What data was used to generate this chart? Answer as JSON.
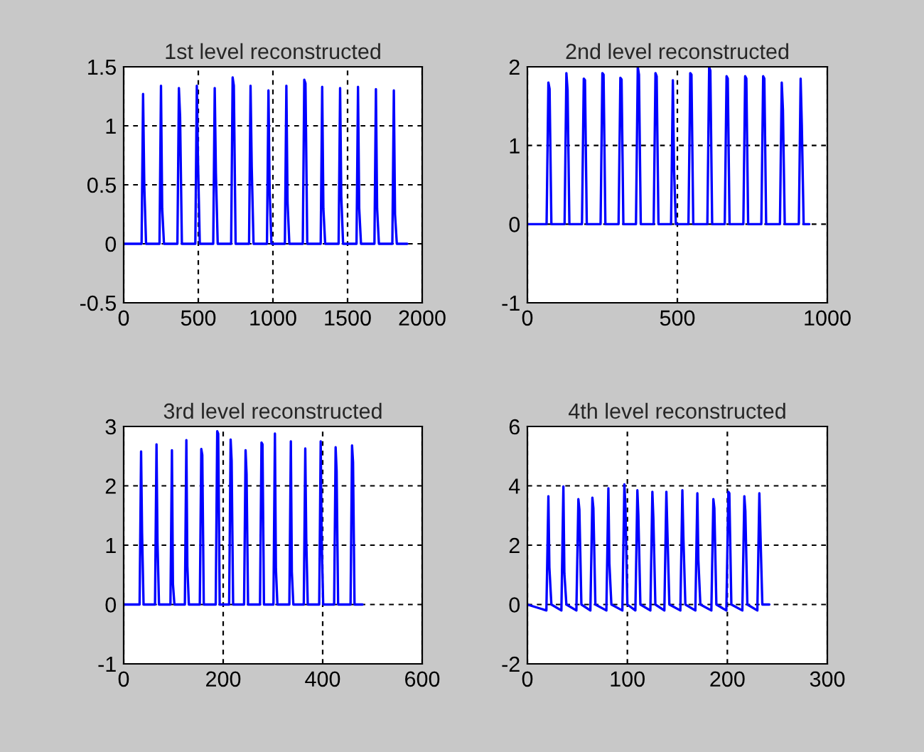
{
  "chart_data": [
    {
      "type": "line",
      "title": "1st level reconstructed",
      "xlim": [
        0,
        2000
      ],
      "ylim": [
        -0.5,
        1.5
      ],
      "xticks": [
        0,
        500,
        1000,
        1500,
        2000
      ],
      "yticks": [
        -0.5,
        0,
        0.5,
        1,
        1.5
      ],
      "grid": true,
      "line_style": "solid",
      "series": [
        {
          "color": "#0000ff",
          "x": [
            0,
            120,
            130,
            138,
            150,
            240,
            250,
            258,
            270,
            360,
            370,
            378,
            390,
            480,
            490,
            498,
            510,
            600,
            610,
            618,
            630,
            720,
            730,
            738,
            750,
            840,
            850,
            858,
            870,
            960,
            970,
            978,
            990,
            1080,
            1090,
            1098,
            1110,
            1200,
            1210,
            1218,
            1230,
            1320,
            1330,
            1338,
            1350,
            1440,
            1450,
            1458,
            1470,
            1560,
            1570,
            1578,
            1590,
            1680,
            1690,
            1698,
            1710,
            1800,
            1810,
            1818,
            1830,
            1900
          ],
          "values": [
            0,
            0,
            1.27,
            0.5,
            0,
            0,
            1.34,
            0.3,
            0,
            0,
            1.32,
            1.08,
            0,
            0,
            1.34,
            0.7,
            0,
            0,
            1.32,
            0.6,
            0,
            0,
            1.41,
            1.34,
            0,
            0,
            1.34,
            0.65,
            0,
            0,
            1.3,
            0.45,
            0,
            0,
            1.34,
            0.35,
            0,
            0,
            1.39,
            1.36,
            0,
            0,
            1.33,
            0.3,
            0,
            0,
            1.32,
            0.4,
            0,
            0,
            1.33,
            0.3,
            0,
            0,
            1.31,
            0.3,
            0,
            0,
            1.3,
            0.25,
            0,
            0
          ]
        }
      ]
    },
    {
      "type": "line",
      "title": "2nd level reconstructed",
      "xlim": [
        0,
        1000
      ],
      "ylim": [
        -1,
        2
      ],
      "xticks": [
        0,
        500,
        1000
      ],
      "yticks": [
        -1,
        0,
        1,
        2
      ],
      "grid": true,
      "line_style": "solid",
      "series": [
        {
          "color": "#0000ff",
          "x": [
            0,
            64,
            70,
            74,
            80,
            124,
            130,
            134,
            140,
            182,
            188,
            192,
            198,
            244,
            250,
            254,
            260,
            304,
            310,
            314,
            320,
            362,
            368,
            372,
            378,
            421,
            427,
            431,
            437,
            479,
            485,
            489,
            495,
            537,
            543,
            547,
            553,
            600,
            606,
            610,
            616,
            658,
            664,
            668,
            674,
            720,
            726,
            730,
            736,
            780,
            786,
            790,
            796,
            842,
            848,
            852,
            858,
            905,
            911,
            915,
            921,
            940
          ],
          "values": [
            0,
            0,
            1.8,
            1.72,
            0,
            0,
            1.92,
            1.7,
            0,
            0,
            1.85,
            1.83,
            0,
            0,
            1.92,
            1.9,
            0,
            0,
            1.86,
            1.84,
            0,
            0,
            2.0,
            1.9,
            0,
            0,
            1.92,
            1.88,
            0,
            0,
            1.83,
            0.7,
            0,
            0,
            1.92,
            1.9,
            0,
            0,
            2.0,
            1.95,
            0,
            0,
            1.88,
            1.85,
            0,
            0,
            1.88,
            1.85,
            0,
            0,
            1.88,
            1.85,
            0,
            0,
            1.8,
            1.45,
            0,
            0,
            1.85,
            1.25,
            0,
            0
          ]
        }
      ]
    },
    {
      "type": "line",
      "title": "3rd level reconstructed",
      "xlim": [
        0,
        600
      ],
      "ylim": [
        -1,
        3
      ],
      "xticks": [
        0,
        200,
        400,
        600
      ],
      "yticks": [
        -1,
        0,
        1,
        2,
        3
      ],
      "grid": true,
      "line_style": "solid",
      "series": [
        {
          "color": "#0000ff",
          "x": [
            0,
            32,
            35,
            37,
            40,
            63,
            66,
            68,
            71,
            94,
            97,
            99,
            102,
            123,
            126,
            128,
            131,
            153,
            156,
            158,
            161,
            185,
            188,
            190,
            193,
            212,
            215,
            217,
            220,
            242,
            245,
            247,
            250,
            274,
            277,
            279,
            282,
            301,
            304,
            306,
            309,
            333,
            336,
            338,
            341,
            362,
            365,
            367,
            370,
            393,
            396,
            398,
            401,
            423,
            426,
            428,
            431,
            456,
            459,
            461,
            464,
            480
          ],
          "values": [
            0,
            0,
            2.58,
            1.2,
            0,
            0,
            2.7,
            1.05,
            0,
            0,
            2.6,
            0.35,
            0,
            0,
            2.77,
            0.65,
            0,
            0,
            2.62,
            2.52,
            0,
            0,
            2.92,
            2.88,
            0,
            0,
            2.78,
            2.42,
            0,
            0,
            2.6,
            2.2,
            0,
            0,
            2.73,
            2.7,
            0,
            0,
            2.88,
            0.6,
            0,
            0,
            2.75,
            0.55,
            0,
            0,
            2.63,
            1.1,
            0,
            0,
            2.75,
            1.1,
            0,
            0,
            2.65,
            2.25,
            0,
            0,
            2.68,
            2.4,
            0,
            0
          ]
        }
      ]
    },
    {
      "type": "line",
      "title": "4th level reconstructed",
      "xlim": [
        0,
        300
      ],
      "ylim": [
        -2,
        6
      ],
      "xticks": [
        0,
        100,
        200,
        300
      ],
      "yticks": [
        -2,
        0,
        2,
        4,
        6
      ],
      "grid": true,
      "line_style": "solid",
      "series": [
        {
          "color": "#0000ff",
          "x": [
            0,
            19,
            21,
            22,
            24,
            34,
            36,
            37,
            39,
            49,
            51,
            52,
            54,
            63,
            65,
            66,
            68,
            79,
            81,
            82,
            84,
            95,
            97,
            98,
            100,
            108,
            110,
            111,
            113,
            123,
            125,
            126,
            128,
            137,
            139,
            140,
            142,
            153,
            155,
            156,
            158,
            168,
            170,
            171,
            173,
            184,
            186,
            187,
            189,
            199,
            201,
            202,
            204,
            215,
            217,
            218,
            220,
            230,
            232,
            233,
            235,
            242
          ],
          "values": [
            0,
            -0.2,
            3.65,
            1.25,
            0,
            -0.2,
            3.98,
            1.05,
            0,
            -0.2,
            3.55,
            3.2,
            0,
            -0.2,
            3.6,
            3.25,
            0,
            -0.2,
            3.92,
            1.4,
            0,
            -0.2,
            4.05,
            3.35,
            0,
            -0.2,
            3.85,
            3.0,
            0,
            -0.2,
            3.8,
            2.9,
            0,
            -0.2,
            3.8,
            2.5,
            0,
            -0.2,
            3.85,
            2.3,
            0,
            -0.2,
            3.75,
            1.5,
            0,
            -0.2,
            3.55,
            3.25,
            0,
            -0.2,
            3.8,
            3.75,
            0,
            -0.2,
            3.65,
            3.15,
            0,
            -0.2,
            3.75,
            2.5,
            0,
            0
          ]
        }
      ]
    }
  ]
}
